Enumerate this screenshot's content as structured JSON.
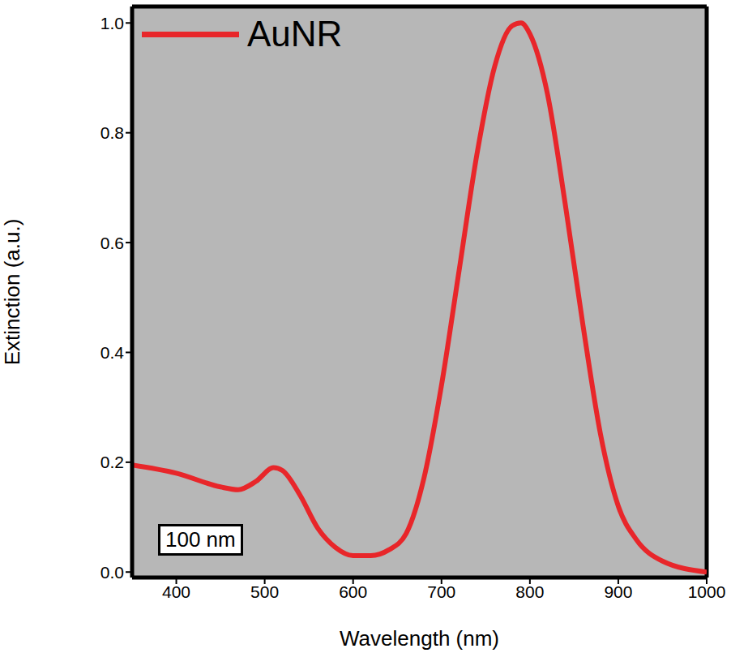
{
  "chart_data": {
    "type": "line",
    "x_label": "Wavelength (nm)",
    "y_label": "Extinction (a.u.)",
    "series": [
      {
        "name": "AuNR",
        "color": "#e8262a",
        "x": [
          350,
          400,
          450,
          470,
          490,
          510,
          520,
          540,
          560,
          580,
          600,
          620,
          640,
          660,
          680,
          700,
          720,
          740,
          760,
          780,
          790,
          800,
          820,
          840,
          860,
          880,
          900,
          920,
          950,
          1000
        ],
        "values": [
          0.195,
          0.18,
          0.155,
          0.15,
          0.165,
          0.19,
          0.185,
          0.14,
          0.08,
          0.045,
          0.03,
          0.03,
          0.04,
          0.07,
          0.17,
          0.34,
          0.55,
          0.76,
          0.92,
          0.995,
          1.0,
          0.98,
          0.87,
          0.67,
          0.45,
          0.25,
          0.12,
          0.06,
          0.02,
          0.0
        ]
      }
    ],
    "xlim": [
      350,
      1000
    ],
    "xticks": [
      400,
      500,
      600,
      700,
      800,
      900,
      1000
    ],
    "ylim": [
      -0.01,
      1.03
    ],
    "yticks": [
      {
        "value": 0,
        "label": "0.0"
      },
      {
        "value": 0.2,
        "label": "0.2"
      },
      {
        "value": 0.4,
        "label": "0.4"
      },
      {
        "value": 0.6,
        "label": "0.6"
      },
      {
        "value": 0.8,
        "label": "0.8"
      },
      {
        "value": 1.0,
        "label": "1.0"
      }
    ],
    "legend": "top-left",
    "annotations": [
      "100 nm"
    ],
    "grid": false
  }
}
